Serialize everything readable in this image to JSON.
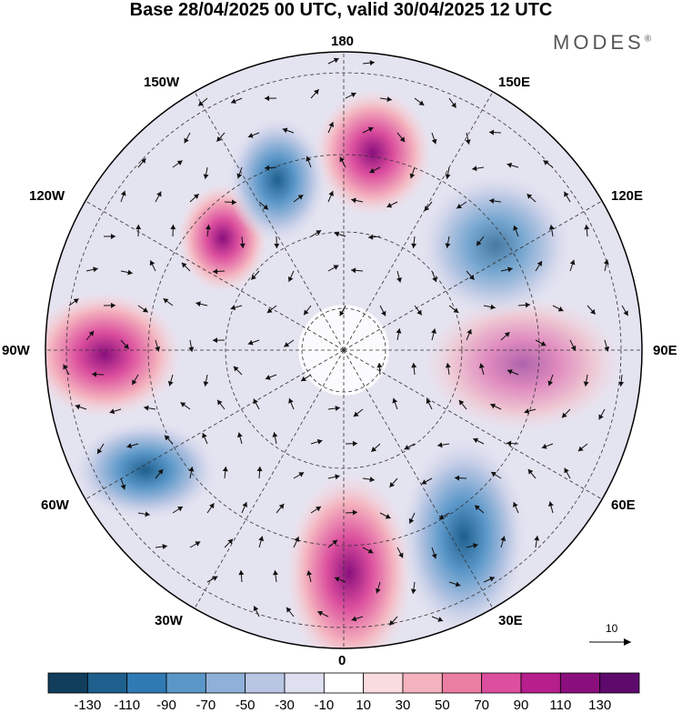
{
  "title": "Base 28/04/2025 00 UTC, valid 30/04/2025 12 UTC",
  "brand": {
    "text": "MODES",
    "mark": "®"
  },
  "longitude_labels": {
    "180": "180",
    "150E": "150E",
    "120E": "120E",
    "90E": "90E",
    "60E": "60E",
    "30E": "30E",
    "0": "0",
    "30W": "30W",
    "60W": "60W",
    "90W": "90W",
    "120W": "120W",
    "150W": "150W"
  },
  "wind_reference": {
    "value": "10"
  },
  "colorbar": {
    "ticks": [
      "-130",
      "-110",
      "-90",
      "-70",
      "-50",
      "-30",
      "-10",
      "10",
      "30",
      "50",
      "70",
      "90",
      "110",
      "130"
    ],
    "colors": [
      "#123e5e",
      "#1e5f8d",
      "#2f7ab3",
      "#5a97c8",
      "#8fb0d8",
      "#b9c6e3",
      "#dedff0",
      "#ffffff",
      "#f9dcdf",
      "#f4b3be",
      "#eb7fa3",
      "#dc4f9e",
      "#b61f8c",
      "#8a0f7d",
      "#5d0a6c"
    ]
  },
  "map": {
    "projection": "north-polar-stereographic",
    "anomaly_centers": [
      {
        "sign": "positive",
        "lon": 5,
        "lat": 42,
        "value": 120
      },
      {
        "sign": "positive",
        "lon": 172,
        "lat": 50,
        "value": 95
      },
      {
        "sign": "positive",
        "lon": -97,
        "lat": 40,
        "value": 100
      },
      {
        "sign": "positive",
        "lon": -145,
        "lat": 50,
        "value": 80
      },
      {
        "sign": "positive",
        "lon": 95,
        "lat": 48,
        "value": 60
      },
      {
        "sign": "negative",
        "lon": -165,
        "lat": 45,
        "value": -90
      },
      {
        "sign": "negative",
        "lon": 140,
        "lat": 45,
        "value": -60
      },
      {
        "sign": "negative",
        "lon": -60,
        "lat": 38,
        "value": -75
      },
      {
        "sign": "negative",
        "lon": 30,
        "lat": 40,
        "value": -80
      }
    ]
  }
}
